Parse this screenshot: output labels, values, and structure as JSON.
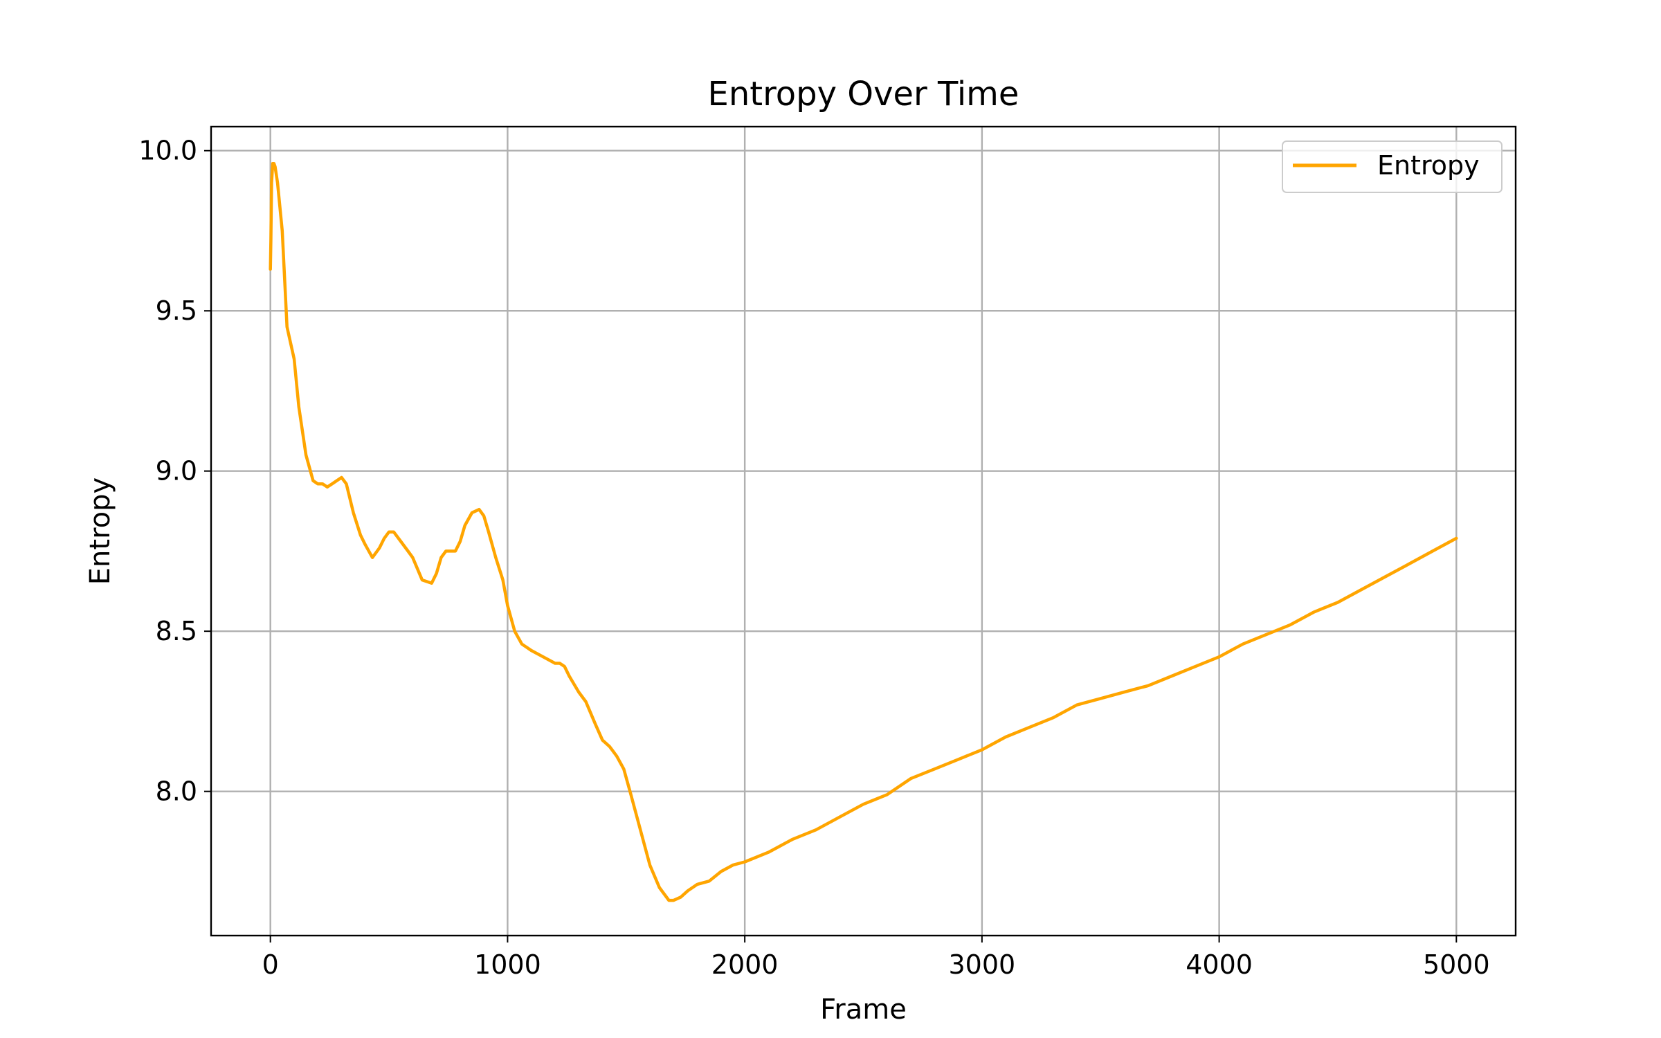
{
  "chart_data": {
    "type": "line",
    "title": "Entropy Over Time",
    "xlabel": "Frame",
    "ylabel": "Entropy",
    "xlim": [
      -250,
      5250
    ],
    "ylim": [
      7.55,
      10.075
    ],
    "xticks": [
      0,
      1000,
      2000,
      3000,
      4000,
      5000
    ],
    "xtick_labels": [
      "0",
      "1000",
      "2000",
      "3000",
      "4000",
      "5000"
    ],
    "yticks": [
      8.0,
      8.5,
      9.0,
      9.5,
      10.0
    ],
    "ytick_labels": [
      "8.0",
      "8.5",
      "9.0",
      "9.5",
      "10.0"
    ],
    "grid": true,
    "legend_position": "top-right",
    "colors": {
      "Entropy": "#ffa500"
    },
    "series": [
      {
        "name": "Entropy",
        "color": "#ffa500",
        "x": [
          0,
          2,
          5,
          10,
          15,
          20,
          30,
          50,
          70,
          100,
          120,
          150,
          180,
          200,
          220,
          240,
          260,
          280,
          300,
          320,
          350,
          380,
          400,
          430,
          460,
          480,
          500,
          520,
          550,
          580,
          600,
          640,
          680,
          700,
          720,
          740,
          780,
          800,
          820,
          850,
          880,
          900,
          920,
          950,
          980,
          1000,
          1030,
          1060,
          1100,
          1150,
          1200,
          1220,
          1240,
          1260,
          1300,
          1330,
          1370,
          1400,
          1430,
          1460,
          1490,
          1520,
          1560,
          1600,
          1640,
          1680,
          1700,
          1730,
          1760,
          1800,
          1850,
          1900,
          1950,
          2000,
          2100,
          2200,
          2300,
          2400,
          2500,
          2600,
          2700,
          2800,
          2900,
          3000,
          3100,
          3200,
          3300,
          3400,
          3500,
          3600,
          3700,
          3800,
          3900,
          4000,
          4100,
          4200,
          4300,
          4400,
          4500,
          4600,
          4700,
          4800,
          4900,
          5000
        ],
        "y": [
          9.63,
          9.72,
          9.9,
          9.96,
          9.96,
          9.95,
          9.9,
          9.75,
          9.45,
          9.35,
          9.2,
          9.05,
          8.97,
          8.96,
          8.96,
          8.95,
          8.96,
          8.97,
          8.98,
          8.96,
          8.87,
          8.8,
          8.77,
          8.73,
          8.76,
          8.79,
          8.81,
          8.81,
          8.78,
          8.75,
          8.73,
          8.66,
          8.65,
          8.68,
          8.73,
          8.75,
          8.75,
          8.78,
          8.83,
          8.87,
          8.88,
          8.86,
          8.81,
          8.73,
          8.66,
          8.58,
          8.5,
          8.46,
          8.44,
          8.42,
          8.4,
          8.4,
          8.39,
          8.36,
          8.31,
          8.28,
          8.21,
          8.16,
          8.14,
          8.11,
          8.07,
          7.99,
          7.88,
          7.77,
          7.7,
          7.66,
          7.66,
          7.67,
          7.69,
          7.71,
          7.72,
          7.75,
          7.77,
          7.78,
          7.81,
          7.85,
          7.88,
          7.92,
          7.96,
          7.99,
          8.04,
          8.07,
          8.1,
          8.13,
          8.17,
          8.2,
          8.23,
          8.27,
          8.29,
          8.31,
          8.33,
          8.36,
          8.39,
          8.42,
          8.46,
          8.49,
          8.52,
          8.56,
          8.59,
          8.63,
          8.67,
          8.71,
          8.75,
          8.79
        ]
      }
    ]
  }
}
